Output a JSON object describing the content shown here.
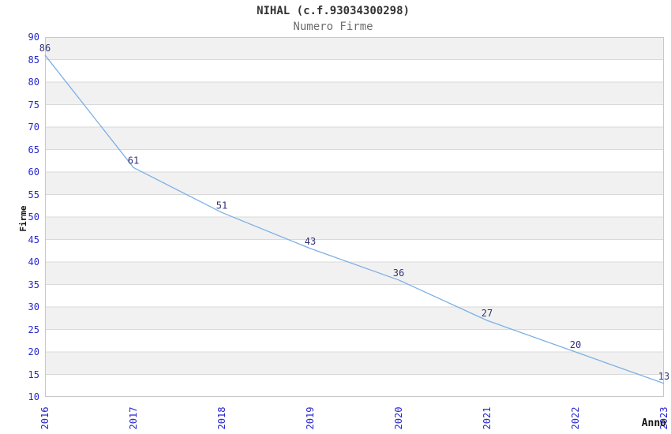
{
  "chart_data": {
    "type": "line",
    "title": "NIHAL (c.f.93034300298)",
    "subtitle": "Numero Firme",
    "xlabel": "Anno",
    "ylabel": "Firme",
    "x": [
      2016,
      2017,
      2018,
      2019,
      2020,
      2021,
      2022,
      2023
    ],
    "series": [
      {
        "name": "Numero Firme",
        "values": [
          86,
          61,
          51,
          43,
          36,
          27,
          20,
          13
        ]
      }
    ],
    "point_labels": [
      "86",
      "61",
      "51",
      "43",
      "36",
      "27",
      "20",
      "13"
    ],
    "xtick_labels": [
      "2016",
      "2017",
      "2018",
      "2019",
      "2020",
      "2021",
      "2022",
      "2023"
    ],
    "ytick_labels": [
      "10",
      "15",
      "20",
      "25",
      "30",
      "35",
      "40",
      "45",
      "50",
      "55",
      "60",
      "65",
      "70",
      "75",
      "80",
      "85",
      "90"
    ],
    "ylim": [
      10,
      90
    ],
    "ytick_step": 5,
    "grid": "horizontal-only",
    "legend_position": "none",
    "colors": {
      "line": "#7cb0e4",
      "tick_label": "#2727cf",
      "point_label": "#333377",
      "band_gray": "#f1f1f1",
      "band_white": "#ffffff",
      "gridline": "#d9d9d9",
      "plot_border": "#c8c8c8",
      "title": "#333333",
      "subtitle": "#6e6e6e",
      "axis_title": "#111111",
      "background": "#ffffff"
    }
  }
}
